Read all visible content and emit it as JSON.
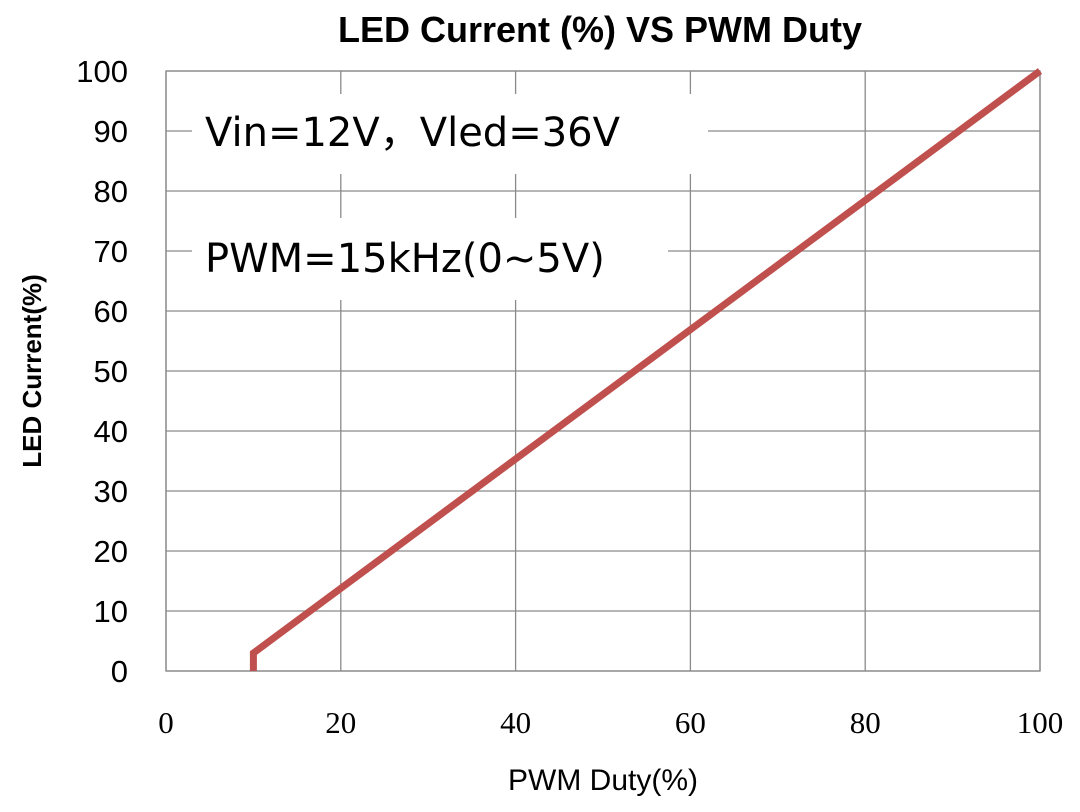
{
  "chart_data": {
    "type": "line",
    "title": "LED Current (%) VS PWM Duty",
    "xlabel": "PWM Duty(%)",
    "ylabel": "LED Current(%)",
    "xlim": [
      0,
      100
    ],
    "ylim": [
      0,
      100
    ],
    "xticks": [
      "0",
      "20",
      "40",
      "60",
      "80",
      "100"
    ],
    "yticks": [
      "0",
      "10",
      "20",
      "30",
      "40",
      "50",
      "60",
      "70",
      "80",
      "90",
      "100"
    ],
    "grid": true,
    "annotations": [
      "Vin=12V，Vled=36V",
      "PWM=15kHz(0~5V)"
    ],
    "series": [
      {
        "color": "#c0504d",
        "x": [
          10,
          10,
          100
        ],
        "y": [
          0,
          3,
          100
        ]
      }
    ]
  }
}
